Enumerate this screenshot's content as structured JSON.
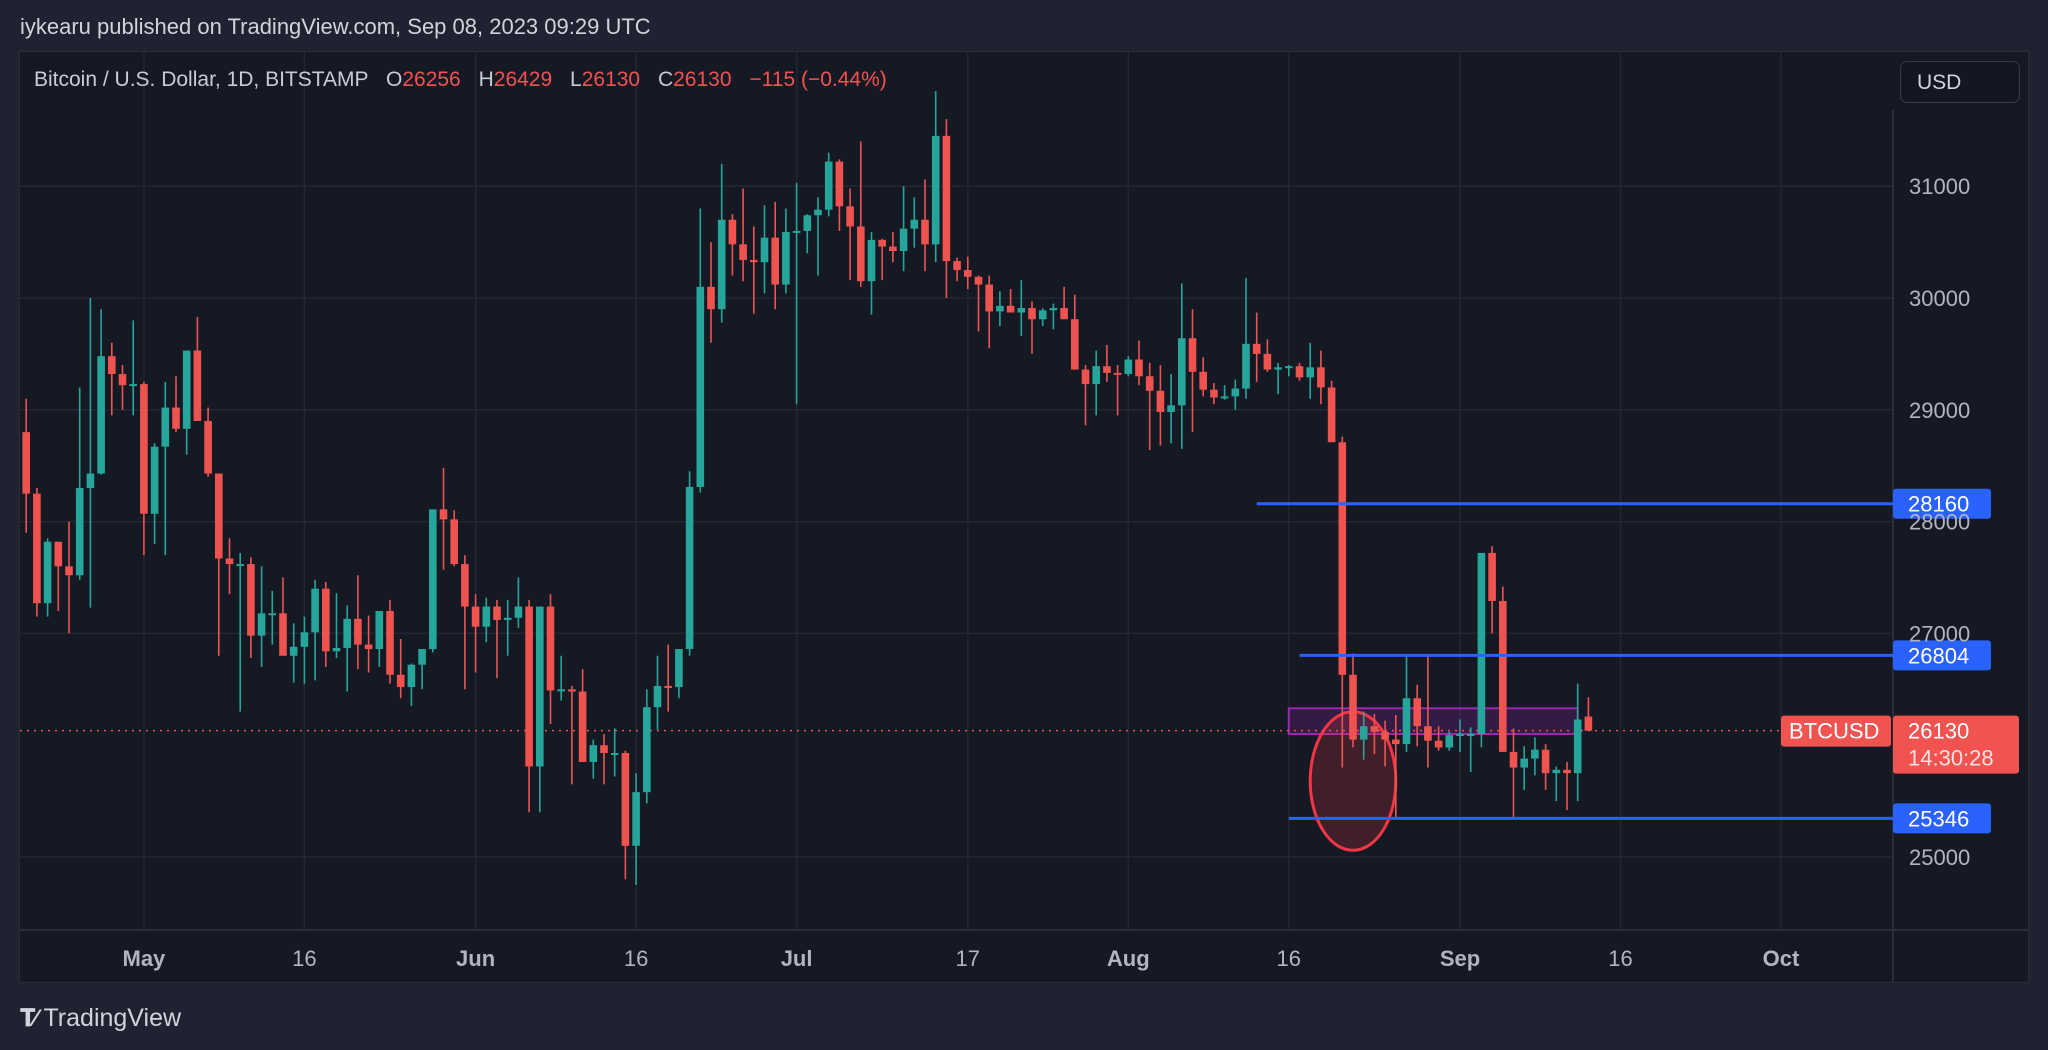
{
  "header": {
    "published": "iykearu published on TradingView.com, Sep 08, 2023 09:29 UTC"
  },
  "legend": {
    "symbol": "Bitcoin / U.S. Dollar, 1D, BITSTAMP",
    "o_label": "O",
    "o": "26256",
    "h_label": "H",
    "h": "26429",
    "l_label": "L",
    "l": "26130",
    "c_label": "C",
    "c": "26130",
    "change": "−115 (−0.44%)"
  },
  "currency_button": {
    "label": "USD"
  },
  "footer": {
    "brand": "TradingView",
    "logo_icon": "tradingview-logo-icon"
  },
  "colors": {
    "up": "#26a69a",
    "down": "#ef5350",
    "line": "#2962ff",
    "label_bg": "#2962ff",
    "price_tag": "#f05350",
    "rect_stroke": "#9c27b0",
    "ellipse_stroke": "#f23645"
  },
  "price_tags": {
    "last_symbol": "BTCUSD",
    "last_price": "26130",
    "countdown": "14:30:28"
  },
  "chart_data": {
    "type": "candlestick",
    "title": "Bitcoin / U.S. Dollar, 1D, BITSTAMP",
    "xlabel": "",
    "ylabel": "USD",
    "ylim": [
      24400,
      31800
    ],
    "y_ticks": [
      25000,
      27000,
      28000,
      29000,
      30000,
      31000
    ],
    "x_ticks": [
      {
        "label": "May",
        "date": "2023-05-01"
      },
      {
        "label": "16",
        "date": "2023-05-16"
      },
      {
        "label": "Jun",
        "date": "2023-06-01"
      },
      {
        "label": "16",
        "date": "2023-06-16"
      },
      {
        "label": "Jul",
        "date": "2023-07-01"
      },
      {
        "label": "17",
        "date": "2023-07-17"
      },
      {
        "label": "Aug",
        "date": "2023-08-01"
      },
      {
        "label": "16",
        "date": "2023-08-16"
      },
      {
        "label": "Sep",
        "date": "2023-09-01"
      },
      {
        "label": "16",
        "date": "2023-09-16"
      },
      {
        "label": "Oct",
        "date": "2023-10-01"
      }
    ],
    "start_date": "2023-04-20",
    "ohlc": [
      [
        28800,
        29100,
        27900,
        28250
      ],
      [
        28250,
        28300,
        27150,
        27270
      ],
      [
        27270,
        27850,
        27150,
        27820
      ],
      [
        27820,
        27820,
        27200,
        27600
      ],
      [
        27600,
        28000,
        27000,
        27520
      ],
      [
        27520,
        29200,
        27480,
        28300
      ],
      [
        28300,
        30000,
        27230,
        28430
      ],
      [
        28430,
        29900,
        28420,
        29480
      ],
      [
        29480,
        29600,
        28950,
        29320
      ],
      [
        29320,
        29400,
        29000,
        29220
      ],
      [
        29220,
        29800,
        28950,
        29230
      ],
      [
        29230,
        29250,
        27700,
        28070
      ],
      [
        28070,
        28700,
        27800,
        28670
      ],
      [
        28670,
        29250,
        27700,
        29020
      ],
      [
        29020,
        29300,
        28800,
        28830
      ],
      [
        28830,
        29150,
        28600,
        29530
      ],
      [
        29530,
        29830,
        28900,
        28900
      ],
      [
        28900,
        29020,
        28400,
        28430
      ],
      [
        28430,
        28430,
        26800,
        27670
      ],
      [
        27670,
        27850,
        27350,
        27620
      ],
      [
        27620,
        27720,
        26300,
        27620
      ],
      [
        27620,
        27680,
        26780,
        26980
      ],
      [
        26980,
        27600,
        26700,
        27180
      ],
      [
        27180,
        27380,
        26900,
        27180
      ],
      [
        27180,
        27500,
        26860,
        26800
      ],
      [
        26800,
        27090,
        26560,
        26880
      ],
      [
        26880,
        27150,
        26550,
        27010
      ],
      [
        27010,
        27480,
        26580,
        27400
      ],
      [
        27400,
        27460,
        26700,
        26840
      ],
      [
        26840,
        27360,
        26780,
        26870
      ],
      [
        26870,
        27250,
        26480,
        27130
      ],
      [
        27130,
        27520,
        26680,
        26900
      ],
      [
        26900,
        27160,
        26650,
        26860
      ],
      [
        26860,
        27150,
        26700,
        27200
      ],
      [
        27200,
        27300,
        26550,
        26630
      ],
      [
        26630,
        26950,
        26420,
        26520
      ],
      [
        26520,
        26730,
        26350,
        26720
      ],
      [
        26720,
        26820,
        26500,
        26860
      ],
      [
        26860,
        28050,
        26830,
        28110
      ],
      [
        28110,
        28480,
        27570,
        28020
      ],
      [
        28020,
        28100,
        27600,
        27620
      ],
      [
        27620,
        27700,
        26500,
        27240
      ],
      [
        27240,
        27350,
        26650,
        27060
      ],
      [
        27060,
        27320,
        26920,
        27240
      ],
      [
        27240,
        27300,
        26600,
        27120
      ],
      [
        27120,
        27300,
        26800,
        27140
      ],
      [
        27140,
        27500,
        27050,
        27240
      ],
      [
        27240,
        27300,
        25400,
        25810
      ],
      [
        25810,
        27100,
        25400,
        27240
      ],
      [
        27240,
        27350,
        26190,
        26490
      ],
      [
        26490,
        26800,
        26400,
        26500
      ],
      [
        26500,
        26530,
        25650,
        26480
      ],
      [
        26480,
        26680,
        25900,
        25850
      ],
      [
        25850,
        26050,
        25700,
        26000
      ],
      [
        26000,
        26100,
        25650,
        25930
      ],
      [
        25930,
        26150,
        25720,
        25930
      ],
      [
        25930,
        25950,
        24800,
        25100
      ],
      [
        25100,
        25750,
        24750,
        25580
      ],
      [
        25580,
        26500,
        25480,
        26340
      ],
      [
        26340,
        26800,
        26140,
        26530
      ],
      [
        26530,
        26900,
        26300,
        26520
      ],
      [
        26520,
        26800,
        26420,
        26860
      ],
      [
        26860,
        28450,
        26800,
        28310
      ],
      [
        28310,
        30800,
        28260,
        30100
      ],
      [
        30100,
        30500,
        29600,
        29900
      ],
      [
        29900,
        31200,
        29780,
        30700
      ],
      [
        30700,
        30750,
        30200,
        30480
      ],
      [
        30480,
        30980,
        30150,
        30340
      ],
      [
        30340,
        30640,
        29860,
        30320
      ],
      [
        30320,
        30830,
        30040,
        30540
      ],
      [
        30540,
        30860,
        29900,
        30120
      ],
      [
        30120,
        30800,
        30040,
        30590
      ],
      [
        30590,
        31030,
        29050,
        30600
      ],
      [
        30600,
        30750,
        30400,
        30740
      ],
      [
        30740,
        30900,
        30200,
        30790
      ],
      [
        30790,
        31300,
        30730,
        31220
      ],
      [
        31220,
        31240,
        30600,
        30820
      ],
      [
        30820,
        30980,
        30160,
        30640
      ],
      [
        30640,
        31400,
        30100,
        30150
      ],
      [
        30150,
        30590,
        29850,
        30520
      ],
      [
        30520,
        30530,
        30160,
        30460
      ],
      [
        30460,
        30590,
        30320,
        30420
      ],
      [
        30420,
        31000,
        30240,
        30620
      ],
      [
        30620,
        30900,
        30450,
        30700
      ],
      [
        30700,
        31060,
        30240,
        30480
      ],
      [
        30480,
        31850,
        30320,
        31450
      ],
      [
        31450,
        31600,
        30000,
        30330
      ],
      [
        30330,
        30360,
        30150,
        30250
      ],
      [
        30250,
        30370,
        30080,
        30190
      ],
      [
        30190,
        30200,
        29700,
        30120
      ],
      [
        30120,
        30200,
        29550,
        29880
      ],
      [
        29880,
        30060,
        29750,
        29930
      ],
      [
        29930,
        30080,
        29900,
        29870
      ],
      [
        29870,
        30160,
        29660,
        29910
      ],
      [
        29910,
        29970,
        29500,
        29810
      ],
      [
        29810,
        29910,
        29750,
        29890
      ],
      [
        29890,
        29950,
        29720,
        29910
      ],
      [
        29910,
        30100,
        29850,
        29810
      ],
      [
        29810,
        30030,
        29490,
        29360
      ],
      [
        29360,
        29400,
        28860,
        29230
      ],
      [
        29230,
        29530,
        28950,
        29390
      ],
      [
        29390,
        29580,
        29250,
        29330
      ],
      [
        29330,
        29400,
        28950,
        29320
      ],
      [
        29320,
        29480,
        29300,
        29450
      ],
      [
        29450,
        29620,
        29220,
        29300
      ],
      [
        29300,
        29420,
        28640,
        29170
      ],
      [
        29170,
        29400,
        28680,
        28980
      ],
      [
        28980,
        29320,
        28700,
        29040
      ],
      [
        29040,
        30130,
        28650,
        29640
      ],
      [
        29640,
        29900,
        28800,
        29340
      ],
      [
        29340,
        29470,
        29120,
        29180
      ],
      [
        29180,
        29240,
        29050,
        29110
      ],
      [
        29110,
        29220,
        29090,
        29120
      ],
      [
        29120,
        29270,
        29000,
        29190
      ],
      [
        29190,
        30180,
        29100,
        29590
      ],
      [
        29590,
        29870,
        29250,
        29500
      ],
      [
        29500,
        29630,
        29340,
        29360
      ],
      [
        29360,
        29420,
        29140,
        29380
      ],
      [
        29380,
        29400,
        29300,
        29390
      ],
      [
        29390,
        29420,
        29260,
        29290
      ],
      [
        29290,
        29600,
        29100,
        29380
      ],
      [
        29380,
        29530,
        29050,
        29200
      ],
      [
        29200,
        29260,
        28730,
        28710
      ],
      [
        28710,
        28760,
        25800,
        26630
      ],
      [
        26630,
        26820,
        25980,
        26050
      ],
      [
        26050,
        26300,
        25870,
        26170
      ],
      [
        26170,
        26280,
        25920,
        26120
      ],
      [
        26120,
        26220,
        25810,
        26050
      ],
      [
        26050,
        26270,
        25350,
        26010
      ],
      [
        26010,
        26800,
        25940,
        26420
      ],
      [
        26420,
        26540,
        25990,
        26170
      ],
      [
        26170,
        26800,
        25800,
        26040
      ],
      [
        26040,
        26170,
        25950,
        25980
      ],
      [
        25980,
        26120,
        25950,
        26090
      ],
      [
        26090,
        26230,
        25940,
        26100
      ],
      [
        26100,
        26160,
        25760,
        26100
      ],
      [
        26100,
        27680,
        25980,
        27720
      ],
      [
        27720,
        27780,
        27000,
        27290
      ],
      [
        27290,
        27420,
        25960,
        25940
      ],
      [
        25940,
        26150,
        25350,
        25800
      ],
      [
        25800,
        25990,
        25600,
        25880
      ],
      [
        25880,
        26070,
        25730,
        25960
      ],
      [
        25960,
        26010,
        25600,
        25750
      ],
      [
        25750,
        25810,
        25500,
        25780
      ],
      [
        25780,
        25850,
        25420,
        25750
      ],
      [
        25750,
        26550,
        25500,
        26230
      ],
      [
        26256,
        26429,
        26130,
        26130
      ]
    ],
    "annotations": {
      "horizontal_lines": [
        {
          "price": 28160,
          "label": "28160",
          "start_date": "2023-08-13"
        },
        {
          "price": 26804,
          "label": "26804",
          "start_date": "2023-08-17"
        },
        {
          "price": 25346,
          "label": "25346",
          "start_date": "2023-08-16"
        }
      ],
      "rectangle": {
        "from": "2023-08-16",
        "to": "2023-09-12",
        "top": 26330,
        "bottom": 26100
      },
      "ellipse": {
        "center_date": "2023-08-22",
        "center_price": 25680,
        "rx_days": 4,
        "ry_price": 620
      },
      "last_price_line": 26130
    }
  }
}
